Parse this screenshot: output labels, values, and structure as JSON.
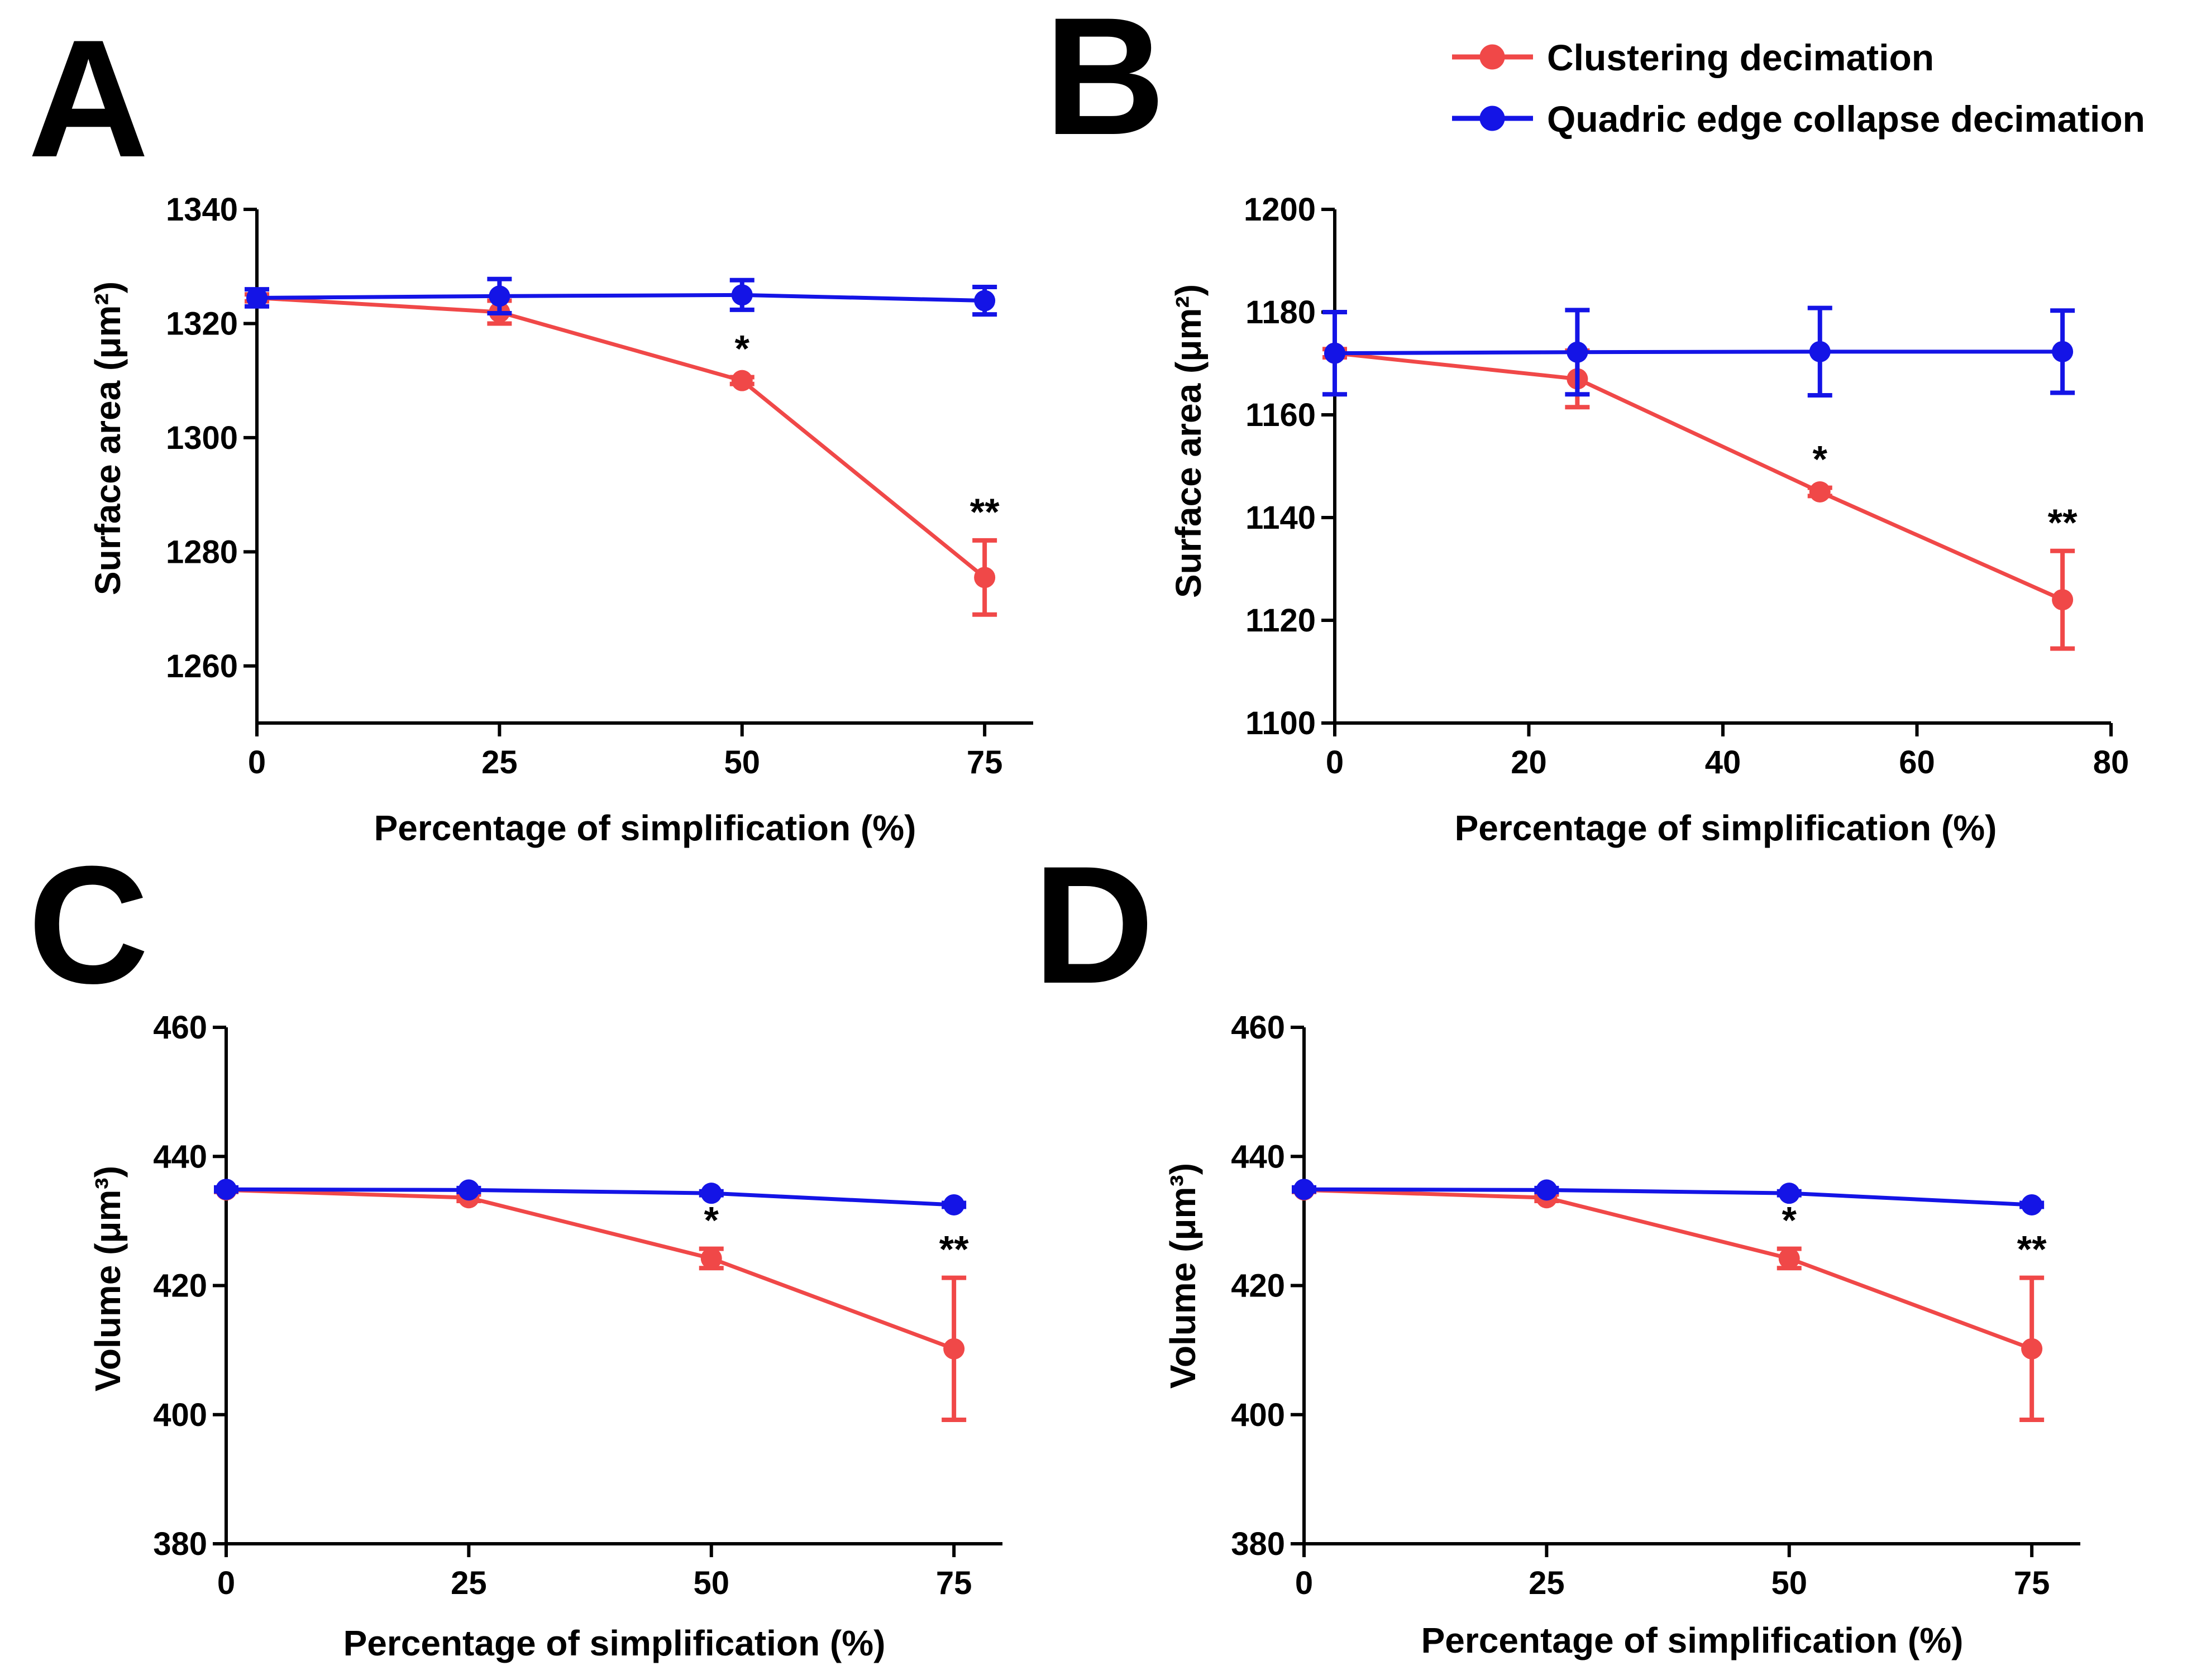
{
  "legend": [
    {
      "name": "Clustering decimation",
      "color": "#f04848"
    },
    {
      "name": "Quadric edge collapse decimation",
      "color": "#1414e6"
    }
  ],
  "chart_data": [
    {
      "panel": "A",
      "type": "line",
      "xlabel": "Percentage of simplification (%)",
      "ylabel": "Surface area (μm²)",
      "xlim": [
        0,
        80
      ],
      "ylim": [
        1250,
        1340
      ],
      "xticks": [
        0,
        25,
        50,
        75
      ],
      "yticks": [
        1260,
        1280,
        1300,
        1320,
        1340
      ],
      "series": [
        {
          "name": "Clustering decimation",
          "color": "#f04848",
          "x": [
            0,
            25,
            50,
            75
          ],
          "y": [
            1324.5,
            1322.0,
            1310.0,
            1275.5
          ],
          "err": [
            0.6,
            2.0,
            0.6,
            6.5
          ]
        },
        {
          "name": "Quadric edge collapse decimation",
          "color": "#1414e6",
          "x": [
            0,
            25,
            50,
            75
          ],
          "y": [
            1324.5,
            1324.8,
            1325.0,
            1324.0
          ],
          "err": [
            1.5,
            3.0,
            2.6,
            2.4
          ]
        }
      ],
      "annotations": [
        {
          "x": 50,
          "y": 1310.0,
          "text": "*"
        },
        {
          "x": 75,
          "y": 1275.5,
          "text": "**"
        }
      ]
    },
    {
      "panel": "B",
      "type": "line",
      "xlabel": "Percentage of simplification (%)",
      "ylabel": "Surface area (μm²)",
      "xlim": [
        0,
        80
      ],
      "ylim": [
        1100,
        1200
      ],
      "xticks": [
        0,
        20,
        40,
        60,
        80
      ],
      "yticks": [
        1100,
        1120,
        1140,
        1160,
        1180,
        1200
      ],
      "series": [
        {
          "name": "Clustering decimation",
          "color": "#f04848",
          "x": [
            0,
            25,
            50,
            75
          ],
          "y": [
            1172.0,
            1167.0,
            1145.0,
            1124.0
          ],
          "err": [
            0.8,
            5.5,
            0.8,
            9.5
          ]
        },
        {
          "name": "Quadric edge collapse decimation",
          "color": "#1414e6",
          "x": [
            0,
            25,
            50,
            75
          ],
          "y": [
            1172.0,
            1172.2,
            1172.3,
            1172.3
          ],
          "err": [
            8.0,
            8.2,
            8.5,
            8.0
          ]
        }
      ],
      "annotations": [
        {
          "x": 50,
          "y": 1145.0,
          "text": "*"
        },
        {
          "x": 75,
          "y": 1124.0,
          "text": "**"
        }
      ]
    },
    {
      "panel": "C",
      "type": "line",
      "xlabel": "Percentage of simplification (%)",
      "ylabel": "Volume (μm³)",
      "xlim": [
        0,
        80
      ],
      "ylim": [
        380,
        460
      ],
      "xticks": [
        0,
        25,
        50,
        75
      ],
      "yticks": [
        380,
        400,
        420,
        440,
        460
      ],
      "series": [
        {
          "name": "Clustering decimation",
          "color": "#f04848",
          "x": [
            0,
            25,
            50,
            75
          ],
          "y": [
            434.8,
            433.6,
            424.2,
            410.2
          ],
          "err": [
            0.3,
            0.5,
            1.5,
            11.0
          ]
        },
        {
          "name": "Quadric edge collapse decimation",
          "color": "#1414e6",
          "x": [
            0,
            25,
            50,
            75
          ],
          "y": [
            434.9,
            434.8,
            434.3,
            432.5
          ],
          "err": [
            0.3,
            0.3,
            0.3,
            0.3
          ]
        }
      ],
      "annotations": [
        {
          "x": 50,
          "y": 424.2,
          "text": "*"
        },
        {
          "x": 75,
          "y": 410.2,
          "text": "**"
        }
      ]
    },
    {
      "panel": "D",
      "type": "line",
      "xlabel": "Percentage of simplification (%)",
      "ylabel": "Volume (μm³)",
      "xlim": [
        0,
        80
      ],
      "ylim": [
        380,
        460
      ],
      "xticks": [
        0,
        25,
        50,
        75
      ],
      "yticks": [
        380,
        400,
        420,
        440,
        460
      ],
      "series": [
        {
          "name": "Clustering decimation",
          "color": "#f04848",
          "x": [
            0,
            25,
            50,
            75
          ],
          "y": [
            434.8,
            433.6,
            424.2,
            410.2
          ],
          "err": [
            0.3,
            0.5,
            1.5,
            11.0
          ]
        },
        {
          "name": "Quadric edge collapse decimation",
          "color": "#1414e6",
          "x": [
            0,
            25,
            50,
            75
          ],
          "y": [
            434.9,
            434.8,
            434.3,
            432.5
          ],
          "err": [
            0.3,
            0.3,
            0.3,
            0.3
          ]
        }
      ],
      "annotations": [
        {
          "x": 50,
          "y": 424.2,
          "text": "*"
        },
        {
          "x": 75,
          "y": 410.2,
          "text": "**"
        }
      ]
    }
  ]
}
